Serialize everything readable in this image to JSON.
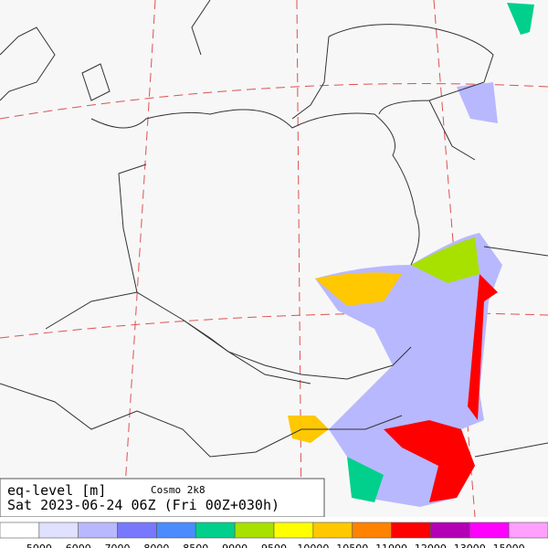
{
  "header": {
    "title": "eq-level [m]",
    "model": "Cosmo 2k8",
    "valid_time": "Sat 2023-06-24 06Z (Fri 00Z+030h)"
  },
  "legend": {
    "colors": [
      "#ffffff",
      "#e0e0ff",
      "#b8b8ff",
      "#7878ff",
      "#4a8cff",
      "#00d08c",
      "#a8e000",
      "#ffff00",
      "#ffc800",
      "#ff8200",
      "#ff0000",
      "#b400b4",
      "#ff00ff",
      "#ffa0ff"
    ],
    "labels": [
      5000,
      6000,
      7000,
      8000,
      8500,
      9000,
      9500,
      10000,
      10500,
      11000,
      12000,
      13000,
      15000
    ]
  }
}
